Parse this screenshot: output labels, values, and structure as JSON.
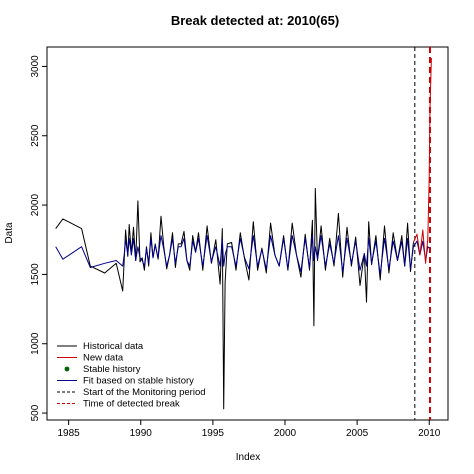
{
  "chart_data": {
    "type": "line",
    "title": "Break detected at: 2010(65)",
    "xlabel": "Index",
    "ylabel": "Data",
    "xlim": [
      1983.5,
      2011.3
    ],
    "ylim": [
      450,
      3140
    ],
    "x_ticks": [
      1985,
      1990,
      1995,
      2000,
      2005,
      2010
    ],
    "x_tick_labels": [
      "1985",
      "1990",
      "1995",
      "2000",
      "2005",
      "2010"
    ],
    "y_ticks": [
      500,
      1000,
      1500,
      2000,
      2500,
      3000
    ],
    "y_tick_labels": [
      "500",
      "1000",
      "1500",
      "2000",
      "2500",
      "3000"
    ],
    "grid": false,
    "legend_position": "bottom-left",
    "colors": {
      "historical": "#000000",
      "new": "#cc0000",
      "stable": "#006400",
      "fit": "#00008b",
      "monitoring": "#000000",
      "break": "#cc0000"
    },
    "legend": [
      {
        "label": "Historical data",
        "style": "line",
        "color": "#000000"
      },
      {
        "label": "New data",
        "style": "line",
        "color": "#cc0000"
      },
      {
        "label": "Stable history",
        "style": "point",
        "color": "#006400"
      },
      {
        "label": "Fit based on stable history",
        "style": "line",
        "color": "#00008b"
      },
      {
        "label": "Start of the Monitoring period",
        "style": "dashed",
        "color": "#000000"
      },
      {
        "label": "Time of detected break",
        "style": "dashed",
        "color": "#cc0000"
      }
    ],
    "monitoring_start": 2009.0,
    "break_time": 2010.05,
    "series": [
      {
        "name": "Historical data",
        "x": [
          1984.1,
          1984.6,
          1985.9,
          1986.5,
          1987.5,
          1988.3,
          1988.75,
          1988.85,
          1988.95,
          1989.1,
          1989.2,
          1989.35,
          1989.5,
          1989.65,
          1989.8,
          1989.95,
          1990.1,
          1990.25,
          1990.4,
          1990.55,
          1990.7,
          1990.85,
          1991.0,
          1991.2,
          1991.4,
          1991.6,
          1991.8,
          1992.0,
          1992.2,
          1992.4,
          1992.6,
          1992.8,
          1993.0,
          1993.2,
          1993.4,
          1993.6,
          1993.8,
          1994.0,
          1994.3,
          1994.6,
          1994.9,
          1995.2,
          1995.5,
          1995.65,
          1995.75,
          1995.85,
          1996.0,
          1996.3,
          1996.6,
          1996.9,
          1997.2,
          1997.5,
          1997.8,
          1998.1,
          1998.4,
          1998.7,
          1999.0,
          1999.3,
          1999.6,
          1999.9,
          2000.2,
          2000.5,
          2000.8,
          2001.1,
          2001.4,
          2001.7,
          2001.9,
          2002.0,
          2002.1,
          2002.25,
          2002.5,
          2002.8,
          2003.1,
          2003.4,
          2003.7,
          2004.0,
          2004.3,
          2004.6,
          2004.9,
          2005.2,
          2005.5,
          2005.65,
          2005.8,
          2006.0,
          2006.3,
          2006.6,
          2006.9,
          2007.2,
          2007.5,
          2007.8,
          2008.1,
          2008.3,
          2008.5,
          2008.7,
          2008.9
        ],
        "y": [
          1830,
          1900,
          1830,
          1560,
          1510,
          1580,
          1380,
          1600,
          1820,
          1630,
          1860,
          1650,
          1840,
          1600,
          2030,
          1590,
          1620,
          1530,
          1700,
          1560,
          1800,
          1620,
          1720,
          1610,
          1920,
          1700,
          1540,
          1640,
          1800,
          1550,
          1720,
          1720,
          1810,
          1600,
          1530,
          1780,
          1660,
          1800,
          1530,
          1850,
          1580,
          1750,
          1430,
          1830,
          530,
          1440,
          1720,
          1730,
          1530,
          1800,
          1610,
          1460,
          1880,
          1530,
          1690,
          1510,
          1870,
          1640,
          1560,
          1780,
          1530,
          1870,
          1640,
          1480,
          1790,
          1530,
          1890,
          1130,
          2120,
          1600,
          1850,
          1530,
          1760,
          1560,
          1940,
          1480,
          1840,
          1560,
          1770,
          1420,
          1650,
          1300,
          1880,
          1570,
          1780,
          1460,
          1850,
          1510,
          1800,
          1600,
          1780,
          1560,
          1870,
          1520,
          1730
        ]
      },
      {
        "name": "New data",
        "x": [
          2008.9,
          2009.15,
          2009.35,
          2009.55,
          2009.75,
          2009.9,
          2010.0,
          2010.05,
          2010.15
        ],
        "y": [
          1730,
          1790,
          1640,
          1820,
          1580,
          1760,
          2200,
          2700,
          3060
        ]
      },
      {
        "name": "Fit based on stable history",
        "x": [
          1984.1,
          1984.6,
          1985.9,
          1986.5,
          1987.5,
          1988.3,
          1988.75,
          1988.85,
          1988.95,
          1989.1,
          1989.2,
          1989.35,
          1989.5,
          1989.65,
          1989.8,
          1989.95,
          1990.1,
          1990.25,
          1990.4,
          1990.55,
          1990.7,
          1990.85,
          1991.0,
          1991.2,
          1991.4,
          1991.6,
          1991.8,
          1992.0,
          1992.2,
          1992.4,
          1992.6,
          1992.8,
          1993.0,
          1993.2,
          1993.4,
          1993.6,
          1993.8,
          1994.0,
          1994.3,
          1994.6,
          1994.9,
          1995.2,
          1995.5,
          1995.65,
          1995.75,
          1995.85,
          1996.0,
          1996.3,
          1996.6,
          1996.9,
          1997.2,
          1997.5,
          1997.8,
          1998.1,
          1998.4,
          1998.7,
          1999.0,
          1999.3,
          1999.6,
          1999.9,
          2000.2,
          2000.5,
          2000.8,
          2001.1,
          2001.4,
          2001.7,
          2001.9,
          2002.0,
          2002.1,
          2002.25,
          2002.5,
          2002.8,
          2003.1,
          2003.4,
          2003.7,
          2004.0,
          2004.3,
          2004.6,
          2004.9,
          2005.2,
          2005.5,
          2005.65,
          2005.8,
          2006.0,
          2006.3,
          2006.6,
          2006.9,
          2007.2,
          2007.5,
          2007.8,
          2008.1,
          2008.3,
          2008.5,
          2008.7,
          2008.9,
          2009.15,
          2009.35,
          2009.55,
          2009.75,
          2009.9,
          2010.0
        ],
        "y": [
          1700,
          1610,
          1700,
          1550,
          1580,
          1600,
          1560,
          1640,
          1750,
          1640,
          1760,
          1640,
          1760,
          1600,
          1700,
          1620,
          1600,
          1560,
          1690,
          1580,
          1760,
          1620,
          1710,
          1620,
          1780,
          1680,
          1560,
          1640,
          1760,
          1580,
          1700,
          1700,
          1760,
          1600,
          1560,
          1740,
          1660,
          1760,
          1560,
          1780,
          1590,
          1700,
          1560,
          1760,
          1560,
          1640,
          1700,
          1700,
          1560,
          1760,
          1620,
          1540,
          1780,
          1560,
          1680,
          1540,
          1780,
          1640,
          1560,
          1760,
          1540,
          1780,
          1640,
          1520,
          1760,
          1550,
          1780,
          1600,
          1700,
          1610,
          1780,
          1560,
          1720,
          1580,
          1780,
          1520,
          1760,
          1580,
          1740,
          1530,
          1650,
          1560,
          1760,
          1580,
          1740,
          1500,
          1760,
          1540,
          1740,
          1600,
          1740,
          1560,
          1760,
          1540,
          1700,
          1740,
          1640,
          1740,
          1600,
          1700,
          1690
        ]
      }
    ]
  }
}
